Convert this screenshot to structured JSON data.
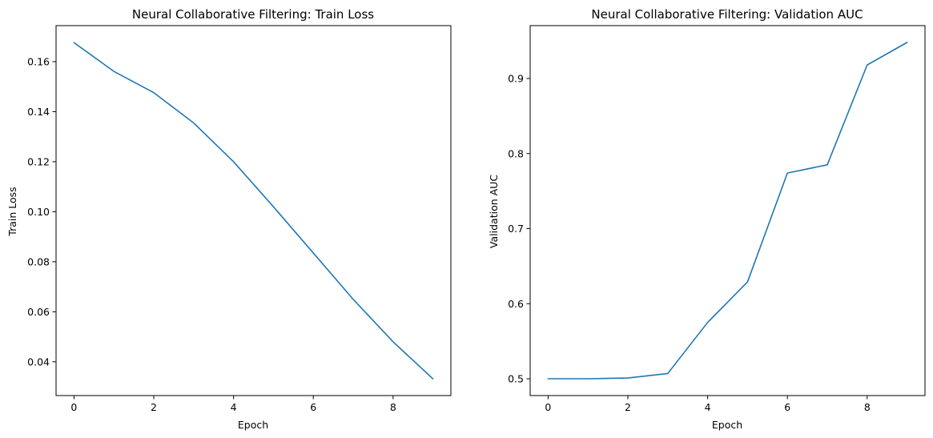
{
  "chart_data": [
    {
      "type": "line",
      "title": "Neural Collaborative Filtering: Train Loss",
      "xlabel": "Epoch",
      "ylabel": "Train Loss",
      "x": [
        0,
        1,
        2,
        3,
        4,
        5,
        6,
        7,
        8,
        9
      ],
      "series": [
        {
          "values": [
            0.1676,
            0.1561,
            0.1476,
            0.1355,
            0.12,
            0.102,
            0.0835,
            0.065,
            0.048,
            0.0332
          ]
        }
      ],
      "xlim": [
        -0.45,
        9.45
      ],
      "ylim": [
        0.0265,
        0.1744
      ],
      "xticks": [
        0,
        2,
        4,
        6,
        8
      ],
      "yticks": [
        0.04,
        0.06,
        0.08,
        0.1,
        0.12,
        0.14,
        0.16
      ],
      "xtick_labels": [
        "0",
        "2",
        "4",
        "6",
        "8"
      ],
      "ytick_labels": [
        "0.04",
        "0.06",
        "0.08",
        "0.10",
        "0.12",
        "0.14",
        "0.16"
      ],
      "grid": false,
      "color": "#1f77b4"
    },
    {
      "type": "line",
      "title": "Neural Collaborative Filtering: Validation AUC",
      "xlabel": "Epoch",
      "ylabel": "Validation AUC",
      "x": [
        0,
        1,
        2,
        3,
        4,
        5,
        6,
        7,
        8,
        9
      ],
      "series": [
        {
          "values": [
            0.5,
            0.5,
            0.501,
            0.507,
            0.575,
            0.629,
            0.774,
            0.785,
            0.918,
            0.948
          ]
        }
      ],
      "xlim": [
        -0.45,
        9.45
      ],
      "ylim": [
        0.4776,
        0.9704
      ],
      "xticks": [
        0,
        2,
        4,
        6,
        8
      ],
      "yticks": [
        0.5,
        0.6,
        0.7,
        0.8,
        0.9
      ],
      "xtick_labels": [
        "0",
        "2",
        "4",
        "6",
        "8"
      ],
      "ytick_labels": [
        "0.5",
        "0.6",
        "0.7",
        "0.8",
        "0.9"
      ],
      "grid": false,
      "color": "#1f77b4"
    }
  ]
}
